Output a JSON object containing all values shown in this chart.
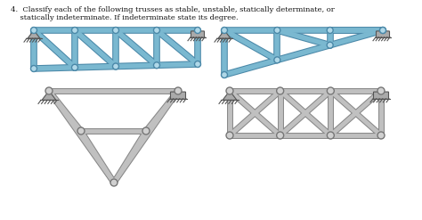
{
  "title_line1": "4.  Classify each of the following trusses as stable, unstable, statically determinate, or",
  "title_line2": "    statically indeterminate. If indeterminate state its degree.",
  "background_color": "#ffffff",
  "steel_color": "#c0c0c0",
  "steel_dark": "#888888",
  "blue_color": "#7ab8d0",
  "blue_dark": "#4a88a8",
  "figsize": [
    4.74,
    2.47
  ],
  "dpi": 100,
  "lw_gray": 3.5,
  "lw_blue": 4.0
}
